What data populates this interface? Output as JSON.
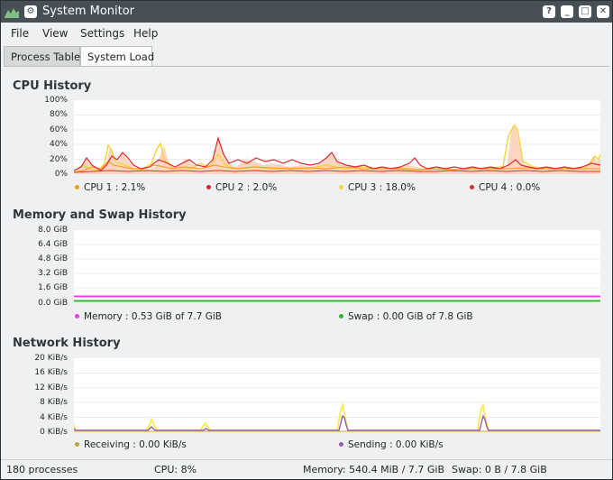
{
  "window": {
    "title": "System Monitor",
    "buttons": [
      "?",
      "_",
      "□",
      "✕"
    ]
  },
  "menu": [
    "File",
    "View",
    "Settings",
    "Help"
  ],
  "tabs": [
    {
      "label": "Process Table",
      "active": false
    },
    {
      "label": "System Load",
      "active": true
    }
  ],
  "cpu": {
    "title": "CPU History",
    "yticks": [
      "100%",
      "80%",
      "60%",
      "40%",
      "20%",
      "0%"
    ],
    "legend": [
      {
        "label": "CPU 1 : 2.1%",
        "color": "#f39c1f"
      },
      {
        "label": "CPU 2 : 2.0%",
        "color": "#e0232e"
      },
      {
        "label": "CPU 3 : 18.0%",
        "color": "#f5d33b"
      },
      {
        "label": "CPU 4 : 0.0%",
        "color": "#d6352b"
      }
    ]
  },
  "memory": {
    "title": "Memory and Swap History",
    "yticks": [
      "8.0 GiB",
      "6.4 GiB",
      "4.8 GiB",
      "3.2 GiB",
      "1.6 GiB",
      "0.0 GiB"
    ],
    "legend": [
      {
        "label": "Memory : 0.53 GiB of 7.7 GiB",
        "color": "#e83ce8"
      },
      {
        "label": "Swap : 0.00 GiB of 7.8 GiB",
        "color": "#2fb62f"
      }
    ]
  },
  "network": {
    "title": "Network History",
    "yticks": [
      "20 KiB/s",
      "16 KiB/s",
      "12 KiB/s",
      "8 KiB/s",
      "4 KiB/s",
      "0 KiB/s"
    ],
    "legend": [
      {
        "label": "Receiving : 0.00 KiB/s",
        "color": "#bfa530"
      },
      {
        "label": "Sending : 0.00 KiB/s",
        "color": "#9b59b6"
      }
    ]
  },
  "status": {
    "processes": "180 processes",
    "cpu": "CPU: 8%",
    "memory": "Memory: 540.4 MiB / 7.7 GiB",
    "swap": "Swap: 0 B / 7.8 GiB"
  }
}
